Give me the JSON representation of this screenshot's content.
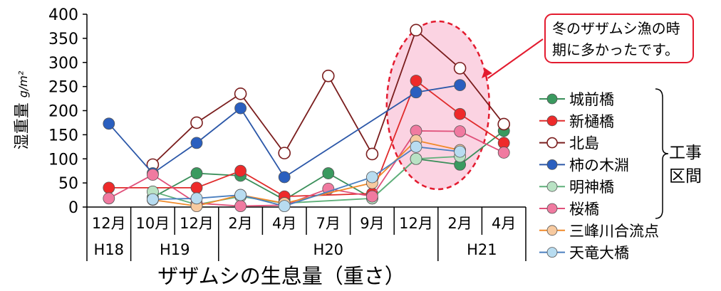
{
  "chart_data": {
    "type": "line",
    "title": "ザザムシの生息量（重さ）",
    "ylabel": "湿重量",
    "yunit": "g/m²",
    "ylim": [
      0,
      400
    ],
    "yticks": [
      0,
      50,
      100,
      150,
      200,
      250,
      300,
      350,
      400
    ],
    "grid": false,
    "categories": [
      "12月",
      "10月",
      "12月",
      "2月",
      "4月",
      "7月",
      "9月",
      "12月",
      "2月",
      "4月"
    ],
    "year_groups": [
      {
        "label": "H18",
        "from": 0,
        "to": 0
      },
      {
        "label": "H19",
        "from": 1,
        "to": 2
      },
      {
        "label": "H20",
        "from": 3,
        "to": 7
      },
      {
        "label": "H21",
        "from": 8,
        "to": 9
      }
    ],
    "annotation": {
      "line1": "冬のザザムシ漁の時",
      "line2": "期に多かったです。",
      "highlight_from": 7,
      "highlight_to": 8
    },
    "legend": {
      "position": "right",
      "bracket_label": [
        "工事",
        "区間"
      ],
      "bracket_series": [
        0,
        5
      ]
    },
    "series": [
      {
        "name": "城前橋",
        "color": "#3a8f5a",
        "fill": "#3a9a5f",
        "values": [
          null,
          20,
          70,
          65,
          15,
          70,
          18,
          100,
          88,
          158
        ]
      },
      {
        "name": "新樋橋",
        "color": "#e02b2b",
        "fill": "#ee2a2a",
        "values": [
          40,
          null,
          40,
          75,
          22,
          null,
          28,
          262,
          193,
          133
        ]
      },
      {
        "name": "北島",
        "color": "#7a1d1d",
        "fill": "#ffffff",
        "values": [
          null,
          88,
          175,
          235,
          112,
          272,
          110,
          367,
          288,
          172
        ]
      },
      {
        "name": "柿の木淵",
        "color": "#2b57a8",
        "fill": "#2a5fbf",
        "values": [
          173,
          70,
          133,
          205,
          62,
          null,
          null,
          238,
          253,
          null
        ]
      },
      {
        "name": "明神橋",
        "color": "#5fb07a",
        "fill": "#b9e2c4",
        "values": [
          null,
          32,
          5,
          22,
          8,
          null,
          18,
          100,
          105,
          null
        ]
      },
      {
        "name": "桜橋",
        "color": "#e0507a",
        "fill": "#f07aa0",
        "values": [
          18,
          67,
          8,
          2,
          4,
          38,
          22,
          158,
          157,
          113
        ]
      },
      {
        "name": "三峰川合流点",
        "color": "#f08a2a",
        "fill": "#f7caa0",
        "values": [
          null,
          15,
          2,
          25,
          8,
          null,
          50,
          138,
          118,
          null
        ]
      },
      {
        "name": "天竜大橋",
        "color": "#4a7fbf",
        "fill": "#b8dcf0",
        "values": [
          null,
          16,
          18,
          25,
          2,
          null,
          62,
          125,
          115,
          null
        ]
      }
    ]
  }
}
